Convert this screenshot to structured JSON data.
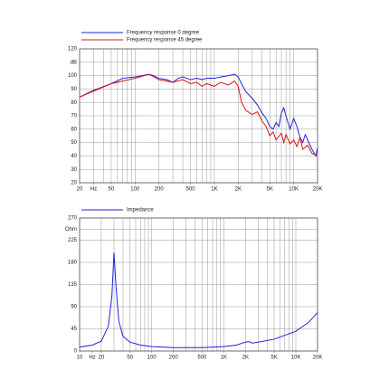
{
  "chart_data": [
    {
      "type": "line",
      "xscale": "log",
      "grid": true,
      "legend": "top-left",
      "xlim": [
        20,
        20000
      ],
      "ylim": [
        20,
        120
      ],
      "xticks": [
        20,
        {
          "value": 30,
          "label": "Hz"
        },
        50,
        100,
        200,
        500,
        {
          "value": 1000,
          "label": "1K"
        },
        {
          "value": 2000,
          "label": "2K"
        },
        {
          "value": 5000,
          "label": "5K"
        },
        {
          "value": 10000,
          "label": "10K"
        },
        {
          "value": 20000,
          "label": "20K"
        }
      ],
      "yticks": [
        120,
        {
          "value": 110,
          "label": "dB"
        },
        100,
        90,
        80,
        70,
        60,
        50,
        40,
        30,
        20
      ],
      "series": [
        {
          "name": "Frequency response 0 degree",
          "color": "#2222dd",
          "x": [
            20,
            30,
            50,
            70,
            100,
            150,
            170,
            200,
            250,
            300,
            350,
            400,
            500,
            600,
            700,
            800,
            1000,
            1200,
            1500,
            1800,
            2000,
            2200,
            2500,
            3000,
            3500,
            4000,
            4500,
            5000,
            5500,
            6000,
            6500,
            7000,
            7500,
            8000,
            9000,
            10000,
            11000,
            12000,
            13000,
            14000,
            15000,
            17000,
            19000,
            20000
          ],
          "values": [
            84,
            89,
            94,
            98,
            99,
            101,
            100,
            98,
            97,
            95,
            98,
            99,
            97,
            98,
            97,
            98,
            98,
            99,
            100,
            101,
            99,
            94,
            88,
            83,
            78,
            72,
            68,
            62,
            60,
            65,
            62,
            72,
            76,
            70,
            60,
            68,
            62,
            54,
            50,
            56,
            52,
            45,
            40,
            46
          ]
        },
        {
          "name": "Frequency response 45 degree",
          "color": "#dd1111",
          "x": [
            20,
            50,
            100,
            150,
            200,
            300,
            400,
            500,
            600,
            700,
            800,
            1000,
            1200,
            1500,
            1800,
            2000,
            2200,
            2500,
            3000,
            3500,
            4000,
            4500,
            5000,
            5500,
            6000,
            7000,
            7500,
            8000,
            9000,
            10000,
            11000,
            12000,
            13000,
            15000,
            17000,
            20000
          ],
          "values": [
            84,
            94,
            98,
            101,
            97,
            95,
            97,
            94,
            95,
            92,
            94,
            92,
            95,
            93,
            96,
            92,
            80,
            74,
            71,
            73,
            66,
            62,
            55,
            58,
            52,
            57,
            50,
            56,
            49,
            52,
            47,
            54,
            45,
            48,
            42,
            40
          ]
        }
      ]
    },
    {
      "type": "line",
      "xscale": "log",
      "grid": true,
      "legend": "top-left",
      "xlim": [
        10,
        20000
      ],
      "ylim": [
        0,
        270
      ],
      "xticks": [
        10,
        {
          "value": 15,
          "label": "Hz"
        },
        20,
        50,
        100,
        200,
        500,
        {
          "value": 1000,
          "label": "1K"
        },
        {
          "value": 2000,
          "label": "2K"
        },
        {
          "value": 5000,
          "label": "5K"
        },
        {
          "value": 10000,
          "label": "10K"
        },
        {
          "value": 20000,
          "label": "20K"
        }
      ],
      "yticks": [
        270,
        {
          "value": 247.5,
          "label": "Ohm"
        },
        225,
        180,
        135,
        90,
        45,
        0
      ],
      "series": [
        {
          "name": "Impedance",
          "color": "#2222dd",
          "x": [
            10,
            15,
            20,
            25,
            28,
            30,
            32,
            35,
            40,
            50,
            70,
            100,
            200,
            500,
            1000,
            1500,
            2000,
            2200,
            2500,
            3000,
            5000,
            10000,
            15000,
            20000
          ],
          "values": [
            8,
            12,
            20,
            50,
            110,
            200,
            130,
            60,
            30,
            18,
            12,
            9,
            7,
            7,
            9,
            12,
            18,
            19,
            16,
            18,
            24,
            40,
            58,
            78
          ]
        }
      ]
    }
  ]
}
